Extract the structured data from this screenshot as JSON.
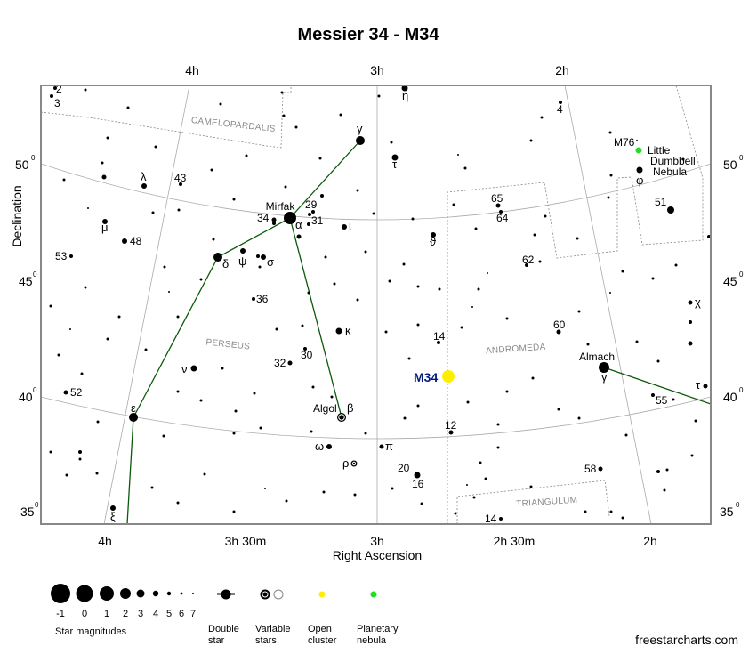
{
  "title": "Messier 34 - M34",
  "axes": {
    "x_label": "Right Ascension",
    "y_label": "Declination",
    "top_ra": [
      "4h",
      "3h",
      "2h"
    ],
    "bottom_ra": [
      "4h",
      "3h 30m",
      "3h",
      "2h 30m",
      "2h"
    ],
    "dec": [
      "50",
      "45",
      "40",
      "35"
    ],
    "dec_unit": "0"
  },
  "constellations": [
    "CAMELOPARDALIS",
    "PERSEUS",
    "ANDROMEDA",
    "TRIANGULUM"
  ],
  "target": {
    "label": "M34",
    "color": "#ffee00",
    "label_color": "#001a80"
  },
  "planetary": {
    "label": "M76",
    "name_lines": [
      "Little",
      "Dumbbell",
      "Nebula"
    ],
    "color": "#22dd22"
  },
  "star_labels": {
    "mirfak": "Mirfak",
    "algol": "Algol",
    "almach": "Almach",
    "alpha": "α",
    "beta": "β",
    "gamma": "γ",
    "delta": "δ",
    "epsilon": "ε",
    "kappa": "κ",
    "iota": "ι",
    "psi": "ψ",
    "sigma": "σ",
    "nu": "ν",
    "lambda": "λ",
    "mu": "μ",
    "xi": "ξ",
    "eta": "η",
    "tau": "τ",
    "theta": "ϑ",
    "phi": "φ",
    "chi": "χ",
    "omega": "ω",
    "pi": "π",
    "rho": "ρ",
    "n2": "2",
    "n3": "3",
    "n4": "4",
    "n12": "12",
    "n14": "14",
    "n14b": "14",
    "n16": "16",
    "n20": "20",
    "n29": "29",
    "n30": "30",
    "n31": "31",
    "n32": "32",
    "n34": "34",
    "n36": "36",
    "n43": "43",
    "n48": "48",
    "n51": "51",
    "n52": "52",
    "n53": "53",
    "n55": "55",
    "n58": "58",
    "n60": "60",
    "n62": "62",
    "n64": "64",
    "n65": "65"
  },
  "legend": {
    "magnitudes": [
      "-1",
      "0",
      "1",
      "2",
      "3",
      "4",
      "5",
      "6",
      "7"
    ],
    "magnitudes_caption": "Star magnitudes",
    "double_star": [
      "Double",
      "star"
    ],
    "variable_stars": [
      "Variable",
      "stars"
    ],
    "open_cluster": [
      "Open",
      "cluster"
    ],
    "planetary_nebula": [
      "Planetary",
      "nebula"
    ]
  },
  "credit": "freestarcharts.com"
}
